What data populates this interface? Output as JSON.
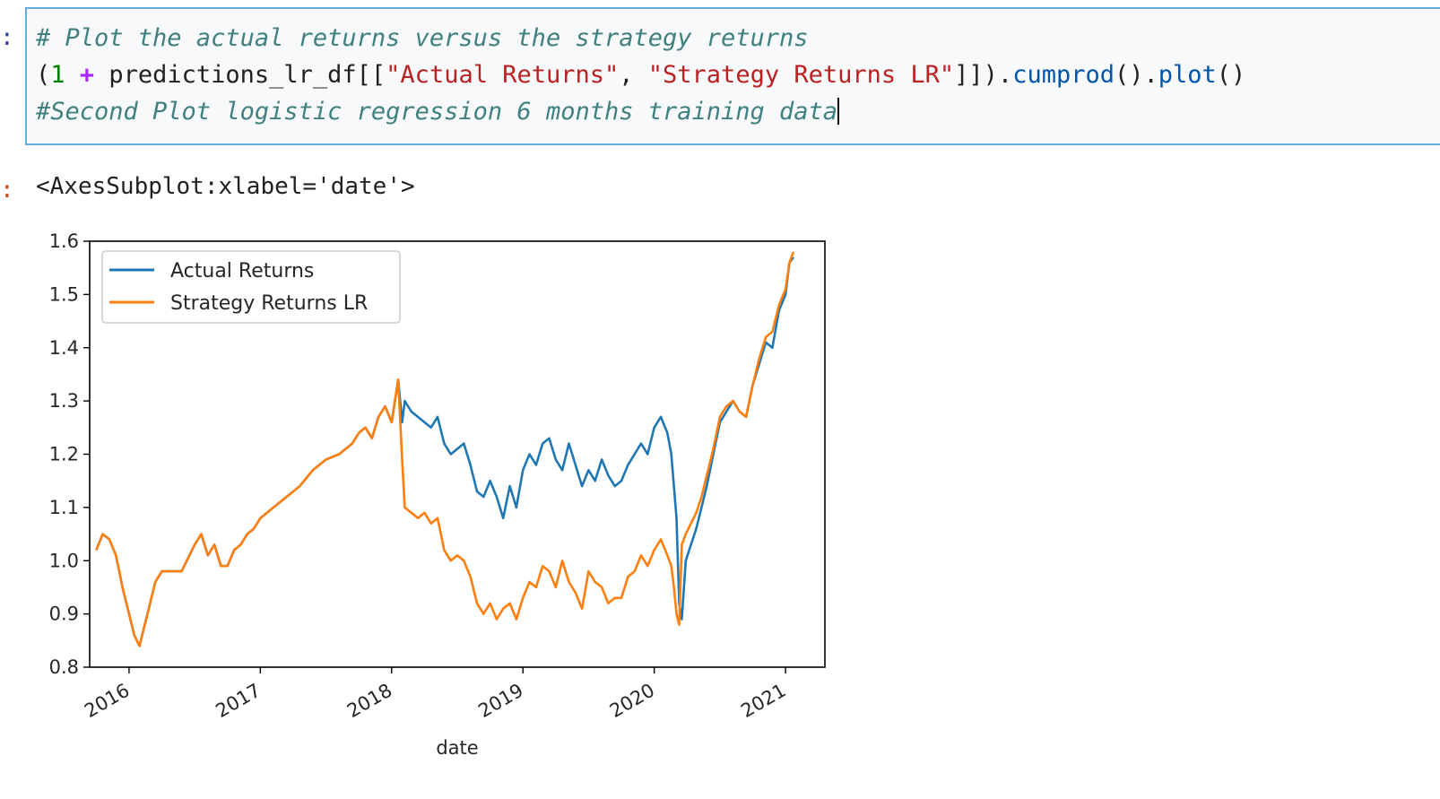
{
  "cell": {
    "input_prompt": ":",
    "output_prompt": ":",
    "code_comment_1": "# Plot the actual returns versus the strategy returns",
    "code_line_2": {
      "open_paren": "(",
      "number": "1",
      "space1": " ",
      "operator": "+",
      "middle": " predictions_lr_df[[",
      "string1": "\"Actual Returns\"",
      "comma": ", ",
      "string2": "\"Strategy Returns LR\"",
      "close": "]]).",
      "method1": "cumprod",
      "paren1": "().",
      "method2": "plot",
      "paren2": "()"
    },
    "code_comment_3": "#Second Plot logistic regression 6 months training data",
    "output_repr": "<AxesSubplot:xlabel='date'>"
  },
  "colors": {
    "actual": "#1f77b4",
    "strategy": "#ff7f0e"
  },
  "chart_data": {
    "type": "line",
    "xlabel": "date",
    "ylabel": "",
    "ylim": [
      0.8,
      1.6
    ],
    "xlim": [
      2015.7,
      2021.3
    ],
    "yticks": [
      "0.8",
      "0.9",
      "1.0",
      "1.1",
      "1.2",
      "1.3",
      "1.4",
      "1.5",
      "1.6"
    ],
    "xticks": [
      "2016",
      "2017",
      "2018",
      "2019",
      "2020",
      "2021"
    ],
    "legend": {
      "position": "top-left"
    },
    "grid": false,
    "series": [
      {
        "name": "Actual Returns",
        "color": "#1f77b4",
        "x": [
          2015.75,
          2015.8,
          2015.85,
          2015.9,
          2015.95,
          2016.0,
          2016.04,
          2016.08,
          2016.12,
          2016.16,
          2016.2,
          2016.25,
          2016.3,
          2016.4,
          2016.5,
          2016.55,
          2016.6,
          2016.65,
          2016.7,
          2016.75,
          2016.8,
          2016.85,
          2016.9,
          2016.95,
          2017.0,
          2017.1,
          2017.2,
          2017.3,
          2017.4,
          2017.5,
          2017.6,
          2017.7,
          2017.75,
          2017.8,
          2017.85,
          2017.9,
          2017.95,
          2018.0,
          2018.05,
          2018.08,
          2018.1,
          2018.15,
          2018.2,
          2018.25,
          2018.3,
          2018.35,
          2018.4,
          2018.45,
          2018.5,
          2018.55,
          2018.6,
          2018.65,
          2018.7,
          2018.75,
          2018.8,
          2018.85,
          2018.9,
          2018.95,
          2019.0,
          2019.05,
          2019.1,
          2019.15,
          2019.2,
          2019.25,
          2019.3,
          2019.35,
          2019.4,
          2019.45,
          2019.5,
          2019.55,
          2019.6,
          2019.65,
          2019.7,
          2019.75,
          2019.8,
          2019.85,
          2019.9,
          2019.95,
          2020.0,
          2020.05,
          2020.1,
          2020.13,
          2020.15,
          2020.17,
          2020.19,
          2020.21,
          2020.24,
          2020.28,
          2020.32,
          2020.36,
          2020.4,
          2020.45,
          2020.5,
          2020.55,
          2020.6,
          2020.65,
          2020.7,
          2020.75,
          2020.8,
          2020.85,
          2020.9,
          2020.95,
          2021.0,
          2021.03,
          2021.06
        ],
        "y": [
          1.02,
          1.05,
          1.04,
          1.01,
          0.95,
          0.9,
          0.86,
          0.84,
          0.88,
          0.92,
          0.96,
          0.98,
          0.98,
          0.98,
          1.03,
          1.05,
          1.01,
          1.03,
          0.99,
          0.99,
          1.02,
          1.03,
          1.05,
          1.06,
          1.08,
          1.1,
          1.12,
          1.14,
          1.17,
          1.19,
          1.2,
          1.22,
          1.24,
          1.25,
          1.23,
          1.27,
          1.29,
          1.26,
          1.34,
          1.26,
          1.3,
          1.28,
          1.27,
          1.26,
          1.25,
          1.27,
          1.22,
          1.2,
          1.21,
          1.22,
          1.18,
          1.13,
          1.12,
          1.15,
          1.12,
          1.08,
          1.14,
          1.1,
          1.17,
          1.2,
          1.18,
          1.22,
          1.23,
          1.19,
          1.17,
          1.22,
          1.18,
          1.14,
          1.17,
          1.15,
          1.19,
          1.16,
          1.14,
          1.15,
          1.18,
          1.2,
          1.22,
          1.2,
          1.25,
          1.27,
          1.24,
          1.2,
          1.14,
          1.08,
          0.92,
          0.89,
          1.0,
          1.03,
          1.06,
          1.1,
          1.14,
          1.2,
          1.26,
          1.28,
          1.3,
          1.28,
          1.27,
          1.33,
          1.37,
          1.41,
          1.4,
          1.47,
          1.5,
          1.56,
          1.57
        ]
      },
      {
        "name": "Strategy Returns LR",
        "color": "#ff7f0e",
        "x": [
          2015.75,
          2015.8,
          2015.85,
          2015.9,
          2015.95,
          2016.0,
          2016.04,
          2016.08,
          2016.12,
          2016.16,
          2016.2,
          2016.25,
          2016.3,
          2016.4,
          2016.5,
          2016.55,
          2016.6,
          2016.65,
          2016.7,
          2016.75,
          2016.8,
          2016.85,
          2016.9,
          2016.95,
          2017.0,
          2017.1,
          2017.2,
          2017.3,
          2017.4,
          2017.5,
          2017.6,
          2017.7,
          2017.75,
          2017.8,
          2017.85,
          2017.9,
          2017.95,
          2018.0,
          2018.05,
          2018.08,
          2018.1,
          2018.15,
          2018.2,
          2018.25,
          2018.3,
          2018.35,
          2018.4,
          2018.45,
          2018.5,
          2018.55,
          2018.6,
          2018.65,
          2018.7,
          2018.75,
          2018.8,
          2018.85,
          2018.9,
          2018.95,
          2019.0,
          2019.05,
          2019.1,
          2019.15,
          2019.2,
          2019.25,
          2019.3,
          2019.35,
          2019.4,
          2019.45,
          2019.5,
          2019.55,
          2019.6,
          2019.65,
          2019.7,
          2019.75,
          2019.8,
          2019.85,
          2019.9,
          2019.95,
          2020.0,
          2020.05,
          2020.1,
          2020.13,
          2020.15,
          2020.17,
          2020.19,
          2020.21,
          2020.24,
          2020.28,
          2020.32,
          2020.36,
          2020.4,
          2020.45,
          2020.5,
          2020.55,
          2020.6,
          2020.65,
          2020.7,
          2020.75,
          2020.8,
          2020.85,
          2020.9,
          2020.95,
          2021.0,
          2021.03,
          2021.06
        ],
        "y": [
          1.02,
          1.05,
          1.04,
          1.01,
          0.95,
          0.9,
          0.86,
          0.84,
          0.88,
          0.92,
          0.96,
          0.98,
          0.98,
          0.98,
          1.03,
          1.05,
          1.01,
          1.03,
          0.99,
          0.99,
          1.02,
          1.03,
          1.05,
          1.06,
          1.08,
          1.1,
          1.12,
          1.14,
          1.17,
          1.19,
          1.2,
          1.22,
          1.24,
          1.25,
          1.23,
          1.27,
          1.29,
          1.26,
          1.34,
          1.19,
          1.1,
          1.09,
          1.08,
          1.09,
          1.07,
          1.08,
          1.02,
          1.0,
          1.01,
          1.0,
          0.97,
          0.92,
          0.9,
          0.92,
          0.89,
          0.91,
          0.92,
          0.89,
          0.93,
          0.96,
          0.95,
          0.99,
          0.98,
          0.95,
          1.0,
          0.96,
          0.94,
          0.91,
          0.98,
          0.96,
          0.95,
          0.92,
          0.93,
          0.93,
          0.97,
          0.98,
          1.01,
          0.99,
          1.02,
          1.04,
          1.01,
          0.99,
          0.95,
          0.9,
          0.88,
          1.03,
          1.05,
          1.07,
          1.09,
          1.12,
          1.16,
          1.21,
          1.27,
          1.29,
          1.3,
          1.28,
          1.27,
          1.33,
          1.38,
          1.42,
          1.43,
          1.48,
          1.51,
          1.56,
          1.58
        ]
      }
    ]
  }
}
